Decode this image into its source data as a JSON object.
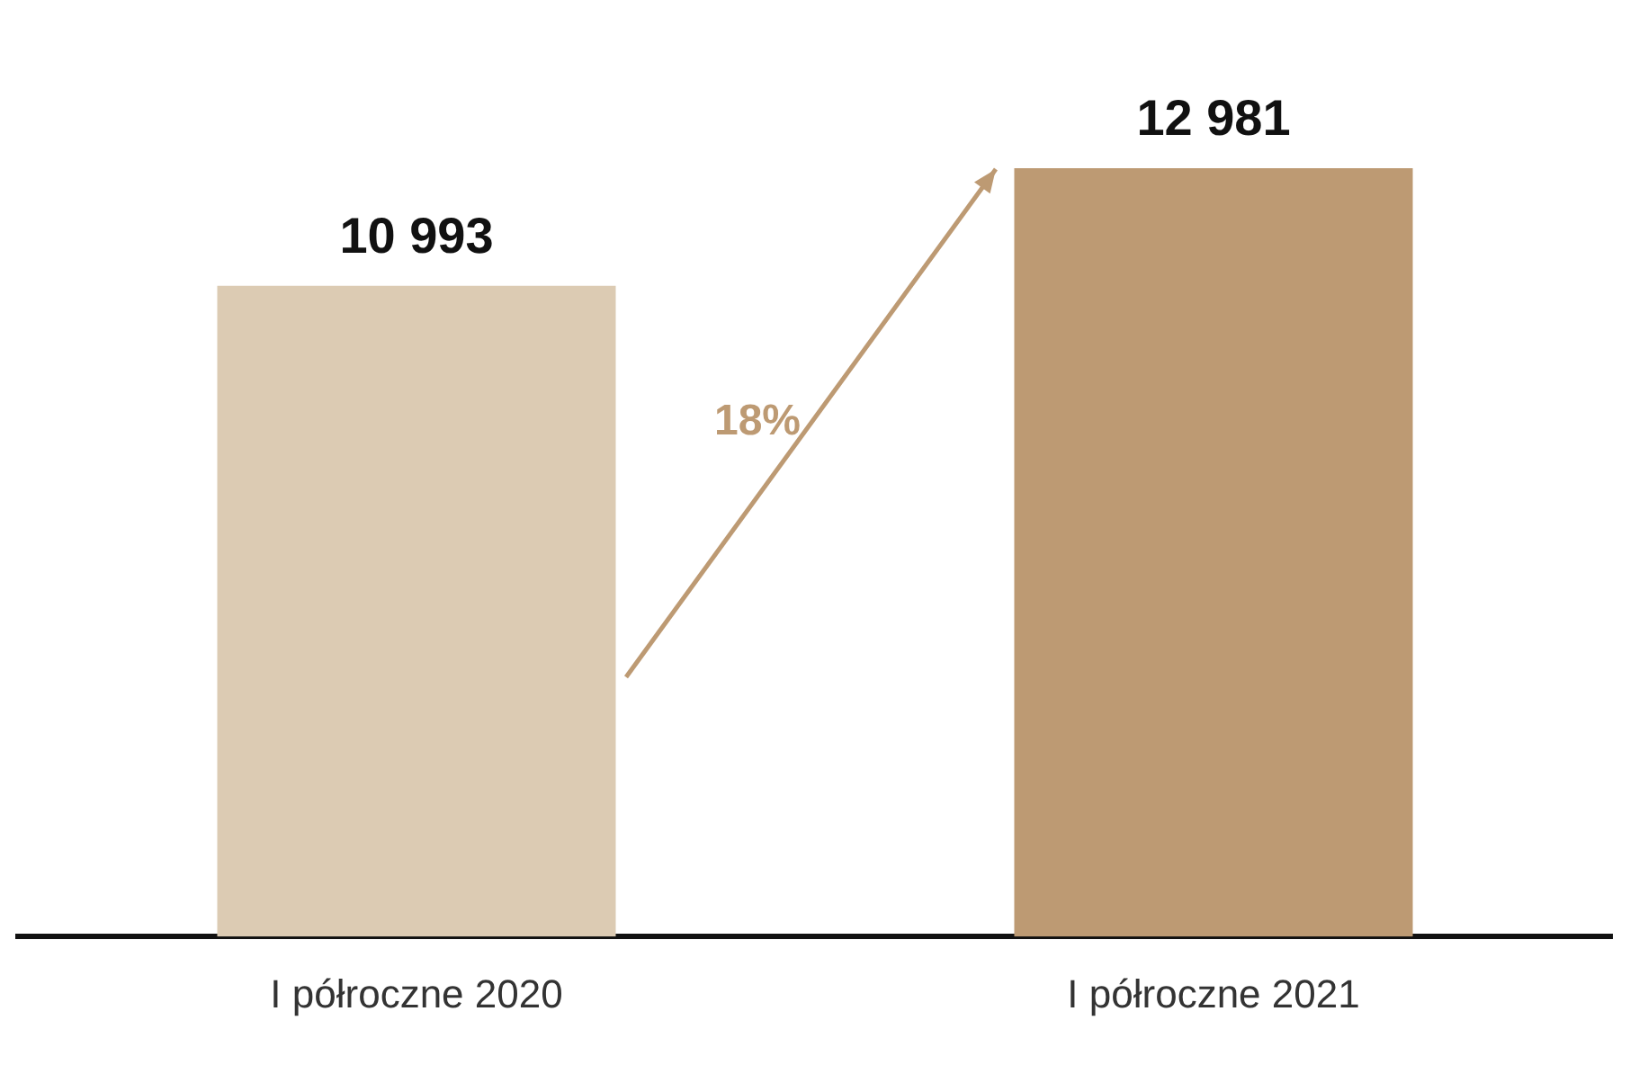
{
  "chart_data": {
    "type": "bar",
    "categories": [
      "I półroczne 2020",
      "I półroczne 2021"
    ],
    "values": [
      10993,
      12981
    ],
    "value_labels": [
      "10 993",
      "12 981"
    ],
    "colors": [
      "#dccbb3",
      "#bd9a73"
    ],
    "annotations": [
      "18%"
    ],
    "grid": false,
    "legend": false,
    "tick_labels": "x"
  }
}
